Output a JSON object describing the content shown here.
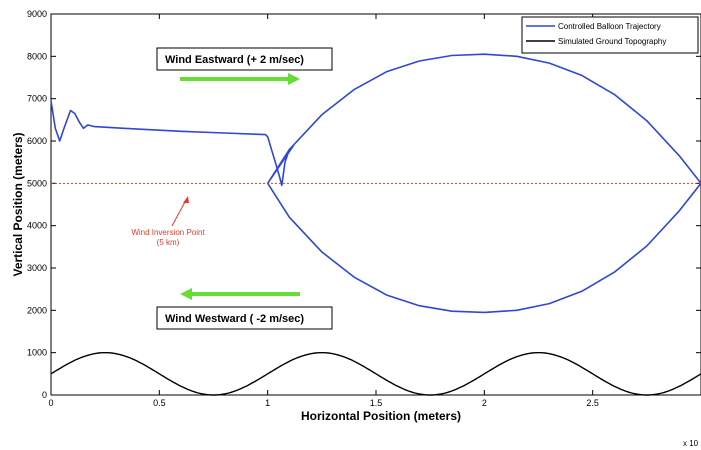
{
  "chart_data": {
    "type": "line",
    "xlabel": "Horizontal Position (meters)",
    "ylabel": "Vertical Position (meters)",
    "x_exponent_label": "x 10",
    "xlim": [
      0,
      3
    ],
    "ylim": [
      0,
      9000
    ],
    "x_ticks": [
      "0",
      "0.5",
      "1",
      "1.5",
      "2",
      "2.5"
    ],
    "y_ticks": [
      "0",
      "1000",
      "2000",
      "3000",
      "4000",
      "5000",
      "6000",
      "7000",
      "8000",
      "9000"
    ],
    "grid": false,
    "legend_position": "top-right",
    "series": [
      {
        "name": "Controlled Balloon Trajectory",
        "color": "#3046d8",
        "points": [
          [
            0.0,
            6950
          ],
          [
            0.02,
            6300
          ],
          [
            0.04,
            6000
          ],
          [
            0.06,
            6300
          ],
          [
            0.09,
            6720
          ],
          [
            0.11,
            6650
          ],
          [
            0.13,
            6450
          ],
          [
            0.15,
            6300
          ],
          [
            0.17,
            6380
          ],
          [
            0.2,
            6340
          ],
          [
            0.4,
            6280
          ],
          [
            0.6,
            6230
          ],
          [
            0.8,
            6190
          ],
          [
            0.99,
            6150
          ],
          [
            1.0,
            6100
          ],
          [
            1.035,
            5500
          ],
          [
            1.055,
            5150
          ],
          [
            1.065,
            4950
          ],
          [
            1.08,
            5500
          ],
          [
            1.1,
            5800
          ],
          [
            1.12,
            5900
          ],
          [
            1.0,
            5000
          ],
          [
            1.1,
            5800
          ],
          [
            1.25,
            6620
          ],
          [
            1.4,
            7220
          ],
          [
            1.55,
            7640
          ],
          [
            1.7,
            7890
          ],
          [
            1.85,
            8020
          ],
          [
            2.0,
            8050
          ],
          [
            2.15,
            8000
          ],
          [
            2.3,
            7840
          ],
          [
            2.45,
            7550
          ],
          [
            2.6,
            7100
          ],
          [
            2.75,
            6480
          ],
          [
            2.9,
            5650
          ],
          [
            3.0,
            5000
          ],
          [
            2.9,
            4350
          ],
          [
            2.75,
            3520
          ],
          [
            2.6,
            2900
          ],
          [
            2.45,
            2450
          ],
          [
            2.3,
            2160
          ],
          [
            2.15,
            2000
          ],
          [
            2.0,
            1950
          ],
          [
            1.85,
            1980
          ],
          [
            1.7,
            2110
          ],
          [
            1.55,
            2360
          ],
          [
            1.4,
            2780
          ],
          [
            1.25,
            3380
          ],
          [
            1.1,
            4200
          ],
          [
            1.0,
            5000
          ]
        ]
      },
      {
        "name": "Simulated Ground Topography",
        "color": "#000000",
        "function": "500 + 500*sin(2*pi*x/1.0)",
        "x_range": [
          0,
          3
        ],
        "amplitude": 500,
        "offset": 500,
        "period": 1.0
      }
    ],
    "reference_line": {
      "y": 5000,
      "style": "dotted",
      "color": "#e23b2a"
    },
    "annotations": [
      {
        "text_lines": [
          "Wind Inversion Point",
          "(5 km)"
        ],
        "color": "#e23b2a"
      },
      {
        "text": "Wind Eastward (+ 2 m/sec)",
        "arrow_direction": "right",
        "arrow_color": "#66dd33"
      },
      {
        "text": "Wind Westward ( -2 m/sec)",
        "arrow_direction": "left",
        "arrow_color": "#66dd33"
      }
    ]
  }
}
